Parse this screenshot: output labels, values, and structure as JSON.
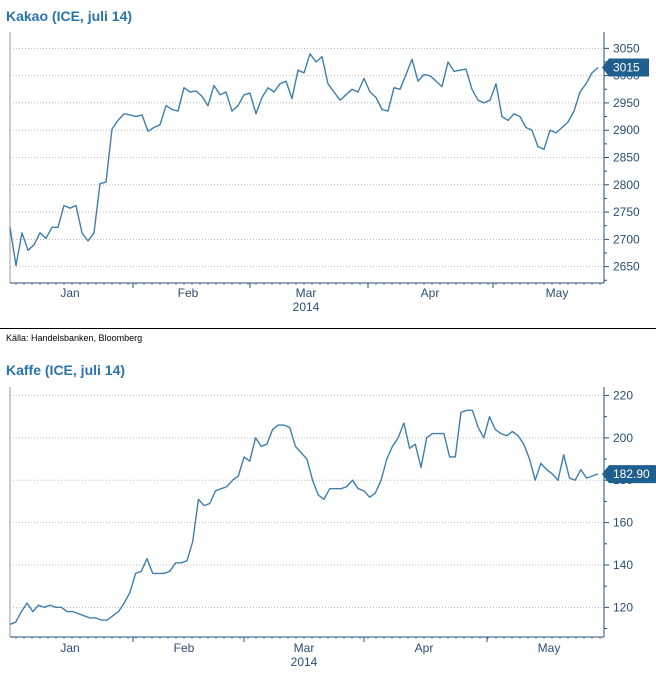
{
  "source": "Källa: Handelsbanken, Bloomberg",
  "colors": {
    "line": "#3f7fae",
    "title": "#2a74ad",
    "badge": "#1f5f8e",
    "grid": "#b9b9b9"
  },
  "chart_data": [
    {
      "type": "line",
      "title": "Kakao (ICE, juli 14)",
      "year_label": "2014",
      "month_labels": [
        "Jan",
        "Feb",
        "Mar",
        "Apr",
        "May"
      ],
      "ylim": [
        2620,
        3080
      ],
      "yticks": [
        2650,
        2700,
        2750,
        2800,
        2850,
        2900,
        2950,
        3000,
        3050
      ],
      "last_value": "3015",
      "last_value_num": 3015,
      "grid": true,
      "series": [
        {
          "values": [
            2722,
            2652,
            2712,
            2680,
            2690,
            2712,
            2702,
            2722,
            2722,
            2762,
            2757,
            2762,
            2712,
            2697,
            2712,
            2802,
            2805,
            2902,
            2918,
            2930,
            2928,
            2925,
            2928,
            2898,
            2905,
            2910,
            2945,
            2938,
            2935,
            2978,
            2970,
            2972,
            2962,
            2945,
            2982,
            2965,
            2970,
            2935,
            2945,
            2965,
            2968,
            2930,
            2960,
            2978,
            2970,
            2985,
            2990,
            2958,
            3010,
            3005,
            3040,
            3025,
            3035,
            2985,
            2970,
            2955,
            2965,
            2975,
            2970,
            2995,
            2970,
            2960,
            2938,
            2935,
            2978,
            2975,
            3002,
            3030,
            2990,
            3002,
            3000,
            2990,
            2980,
            3025,
            3008,
            3010,
            3012,
            2975,
            2955,
            2950,
            2955,
            2985,
            2925,
            2918,
            2930,
            2925,
            2905,
            2900,
            2870,
            2865,
            2900,
            2895,
            2905,
            2915,
            2935,
            2970,
            2985,
            3005,
            3015
          ]
        }
      ]
    },
    {
      "type": "line",
      "title": "Kaffe (ICE, juli 14)",
      "year_label": "2014",
      "month_labels": [
        "Jan",
        "Feb",
        "Mar",
        "Apr",
        "May"
      ],
      "ylim": [
        106,
        224
      ],
      "yticks": [
        120,
        140,
        160,
        180,
        200,
        220
      ],
      "last_value": "182.90",
      "last_value_num": 182.9,
      "grid": true,
      "series": [
        {
          "values": [
            112,
            113,
            118,
            122,
            118,
            121,
            120,
            121,
            120,
            120,
            118,
            118,
            117,
            116,
            115,
            115,
            114,
            114,
            116,
            118,
            122,
            127,
            136,
            137,
            143,
            136,
            136,
            136,
            137,
            141,
            141,
            142,
            151,
            171,
            168,
            169,
            175,
            176,
            177,
            180,
            182,
            191,
            189,
            200,
            196,
            197,
            204,
            206,
            206,
            205,
            196,
            193,
            190,
            180,
            173,
            171,
            176,
            176,
            176,
            177,
            180,
            176,
            175,
            172,
            174,
            180,
            190,
            196,
            200,
            207,
            195,
            197,
            186,
            200,
            202,
            202,
            202,
            191,
            191,
            212,
            213,
            213,
            205,
            200,
            210,
            204,
            202,
            201,
            203,
            201,
            197,
            190,
            180,
            188,
            185,
            183,
            180,
            192,
            181,
            180,
            185,
            181,
            182,
            183
          ]
        }
      ]
    }
  ]
}
